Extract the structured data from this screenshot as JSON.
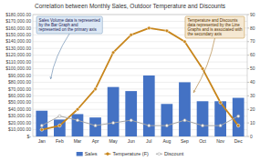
{
  "chart_data": {
    "type": "bar",
    "title": "Correlation between Monthly Sales, Outdoor Temperature and Discounts",
    "categories": [
      "Jan",
      "Feb",
      "Mar",
      "Apr",
      "May",
      "Jun",
      "Jul",
      "Aug",
      "Sep",
      "Oct",
      "Nov",
      "Dec"
    ],
    "series": [
      {
        "name": "Sales",
        "type": "bar",
        "color": "#4472C4",
        "values": [
          38000,
          25000,
          33000,
          28000,
          73000,
          67000,
          90000,
          48000,
          80000,
          52000,
          52000,
          57000
        ]
      },
      {
        "name": "Temperature (F)",
        "type": "line",
        "axis": "y2",
        "color": "#C8861C",
        "marker": "circle",
        "values": [
          5,
          8,
          20,
          35,
          62,
          75,
          80,
          78,
          70,
          50,
          25,
          8
        ]
      },
      {
        "name": "Discount",
        "type": "line",
        "axis": "y2",
        "color": "#A6A6A6",
        "marker": "hollow",
        "values": [
          8,
          15,
          12,
          8,
          10,
          12,
          8,
          8,
          12,
          8,
          8,
          15
        ]
      }
    ],
    "ylim": [
      0,
      180000
    ],
    "yticks": [
      {
        "value": 0,
        "label": "$-"
      },
      {
        "value": 10000,
        "label": "$10,000.00"
      },
      {
        "value": 20000,
        "label": "$20,000.00"
      },
      {
        "value": 30000,
        "label": "$30,000.00"
      },
      {
        "value": 40000,
        "label": "$40,000.00"
      },
      {
        "value": 50000,
        "label": "$50,000.00"
      },
      {
        "value": 60000,
        "label": "$60,000.00"
      },
      {
        "value": 70000,
        "label": "$70,000.00"
      },
      {
        "value": 80000,
        "label": "$80,000.00"
      },
      {
        "value": 90000,
        "label": "$90,000.00"
      },
      {
        "value": 100000,
        "label": "$100,000.00"
      },
      {
        "value": 110000,
        "label": "$110,000.00"
      },
      {
        "value": 120000,
        "label": "$120,000.00"
      },
      {
        "value": 130000,
        "label": "$130,000.00"
      },
      {
        "value": 140000,
        "label": "$140,000.00"
      },
      {
        "value": 150000,
        "label": "$150,000.00"
      },
      {
        "value": 160000,
        "label": "$160,000.00"
      },
      {
        "value": 170000,
        "label": "$170,000.00"
      },
      {
        "value": 180000,
        "label": "$180,000.00"
      }
    ],
    "y2lim": [
      0,
      90
    ],
    "y2ticks": [
      0,
      10,
      20,
      30,
      40,
      50,
      60,
      70,
      80,
      90
    ],
    "grid": true,
    "legend": "bottom",
    "annotations": [
      {
        "text": "Sales Volume data is represented\nby the Bar Graph and\nrepresented on the primary axis",
        "x": 0.5,
        "y": 85000
      },
      {
        "text": "Temperature and Discounts\ndata represented by the Line\nGraphs and is associated with\nthe secondary axis",
        "x": 8.5,
        "y": 65000
      }
    ]
  }
}
